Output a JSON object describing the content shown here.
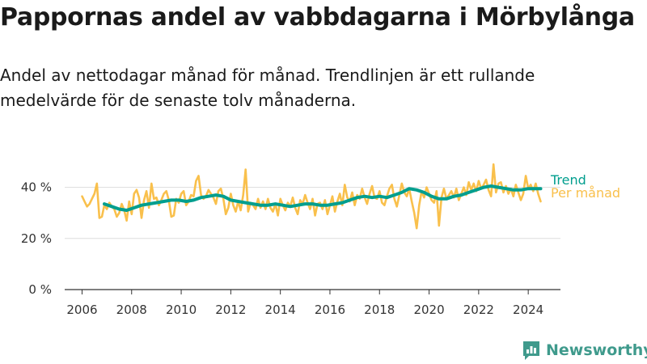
{
  "title": "Pappornas andel av vabbdagarna i Mörbylånga",
  "subtitle": "Andel av nettodagar månad för månad. Trendlinjen är ett rullande medelvärde för de senaste tolv månaderna.",
  "brand": "Newsworthy",
  "colors": {
    "trend": "#009e8e",
    "monthly": "#f9c04c",
    "grid": "#dddddd",
    "brand": "#3f9a8c"
  },
  "chart_data": {
    "type": "line",
    "x_ticks": [
      "2006",
      "2008",
      "2010",
      "2012",
      "2014",
      "2016",
      "2018",
      "2020",
      "2022",
      "2024"
    ],
    "y_ticks": [
      "0 %",
      "20 %",
      "40 %"
    ],
    "ylim": [
      0,
      50
    ],
    "xlim": [
      2005.3,
      2025.3
    ],
    "grid": true,
    "legend": "right-end labels",
    "series": [
      {
        "name": "Per månad",
        "color": "#f9c04c",
        "points": [
          [
            2006.0,
            36.5
          ],
          [
            2006.1,
            34.5
          ],
          [
            2006.2,
            32.5
          ],
          [
            2006.3,
            33.5
          ],
          [
            2006.4,
            35.5
          ],
          [
            2006.5,
            37.5
          ],
          [
            2006.6,
            41.5
          ],
          [
            2006.7,
            28.0
          ],
          [
            2006.8,
            28.5
          ],
          [
            2006.9,
            33.0
          ],
          [
            2007.0,
            31.5
          ],
          [
            2007.1,
            34.0
          ],
          [
            2007.2,
            32.5
          ],
          [
            2007.3,
            31.5
          ],
          [
            2007.4,
            28.5
          ],
          [
            2007.5,
            30.0
          ],
          [
            2007.6,
            33.5
          ],
          [
            2007.7,
            31.0
          ],
          [
            2007.8,
            27.0
          ],
          [
            2007.9,
            34.5
          ],
          [
            2008.0,
            29.5
          ],
          [
            2008.1,
            37.5
          ],
          [
            2008.2,
            39.0
          ],
          [
            2008.3,
            36.0
          ],
          [
            2008.4,
            28.0
          ],
          [
            2008.5,
            35.0
          ],
          [
            2008.6,
            38.5
          ],
          [
            2008.7,
            32.0
          ],
          [
            2008.8,
            41.5
          ],
          [
            2008.9,
            35.5
          ],
          [
            2009.0,
            36.0
          ],
          [
            2009.1,
            33.0
          ],
          [
            2009.2,
            35.0
          ],
          [
            2009.3,
            37.5
          ],
          [
            2009.4,
            38.5
          ],
          [
            2009.5,
            35.0
          ],
          [
            2009.6,
            28.5
          ],
          [
            2009.7,
            29.0
          ],
          [
            2009.8,
            35.5
          ],
          [
            2009.9,
            34.0
          ],
          [
            2010.0,
            37.5
          ],
          [
            2010.1,
            38.5
          ],
          [
            2010.2,
            33.0
          ],
          [
            2010.3,
            34.5
          ],
          [
            2010.4,
            37.0
          ],
          [
            2010.5,
            36.5
          ],
          [
            2010.6,
            42.5
          ],
          [
            2010.7,
            44.5
          ],
          [
            2010.8,
            37.0
          ],
          [
            2010.9,
            35.5
          ],
          [
            2011.0,
            36.5
          ],
          [
            2011.1,
            39.0
          ],
          [
            2011.2,
            37.5
          ],
          [
            2011.3,
            36.0
          ],
          [
            2011.4,
            33.5
          ],
          [
            2011.5,
            38.5
          ],
          [
            2011.6,
            39.5
          ],
          [
            2011.7,
            35.5
          ],
          [
            2011.8,
            29.5
          ],
          [
            2011.9,
            32.0
          ],
          [
            2012.0,
            37.5
          ],
          [
            2012.1,
            33.0
          ],
          [
            2012.2,
            30.5
          ],
          [
            2012.3,
            34.5
          ],
          [
            2012.4,
            31.0
          ],
          [
            2012.5,
            37.0
          ],
          [
            2012.6,
            47.0
          ],
          [
            2012.7,
            30.5
          ],
          [
            2012.8,
            34.0
          ],
          [
            2012.9,
            33.0
          ],
          [
            2013.0,
            31.5
          ],
          [
            2013.1,
            35.5
          ],
          [
            2013.2,
            32.0
          ],
          [
            2013.3,
            34.5
          ],
          [
            2013.4,
            31.5
          ],
          [
            2013.5,
            35.5
          ],
          [
            2013.6,
            32.0
          ],
          [
            2013.7,
            30.5
          ],
          [
            2013.8,
            33.5
          ],
          [
            2013.9,
            29.0
          ],
          [
            2014.0,
            35.5
          ],
          [
            2014.1,
            33.0
          ],
          [
            2014.2,
            31.0
          ],
          [
            2014.3,
            34.0
          ],
          [
            2014.4,
            32.5
          ],
          [
            2014.5,
            36.0
          ],
          [
            2014.6,
            32.0
          ],
          [
            2014.7,
            29.5
          ],
          [
            2014.8,
            35.0
          ],
          [
            2014.9,
            33.5
          ],
          [
            2015.0,
            37.0
          ],
          [
            2015.1,
            34.0
          ],
          [
            2015.2,
            31.5
          ],
          [
            2015.3,
            35.5
          ],
          [
            2015.4,
            29.0
          ],
          [
            2015.5,
            33.5
          ],
          [
            2015.6,
            34.0
          ],
          [
            2015.7,
            31.5
          ],
          [
            2015.8,
            35.0
          ],
          [
            2015.9,
            29.5
          ],
          [
            2016.0,
            33.0
          ],
          [
            2016.1,
            36.5
          ],
          [
            2016.2,
            30.5
          ],
          [
            2016.3,
            34.5
          ],
          [
            2016.4,
            37.5
          ],
          [
            2016.5,
            33.0
          ],
          [
            2016.6,
            41.0
          ],
          [
            2016.7,
            36.0
          ],
          [
            2016.8,
            34.5
          ],
          [
            2016.9,
            38.0
          ],
          [
            2017.0,
            33.0
          ],
          [
            2017.1,
            37.0
          ],
          [
            2017.2,
            35.5
          ],
          [
            2017.3,
            39.5
          ],
          [
            2017.4,
            36.0
          ],
          [
            2017.5,
            33.5
          ],
          [
            2017.6,
            37.5
          ],
          [
            2017.7,
            40.5
          ],
          [
            2017.8,
            36.0
          ],
          [
            2017.9,
            35.5
          ],
          [
            2018.0,
            38.5
          ],
          [
            2018.1,
            34.0
          ],
          [
            2018.2,
            33.0
          ],
          [
            2018.3,
            36.5
          ],
          [
            2018.4,
            39.5
          ],
          [
            2018.5,
            41.0
          ],
          [
            2018.6,
            35.5
          ],
          [
            2018.7,
            32.5
          ],
          [
            2018.8,
            37.0
          ],
          [
            2018.9,
            41.5
          ],
          [
            2019.0,
            38.0
          ],
          [
            2019.1,
            36.5
          ],
          [
            2019.2,
            39.5
          ],
          [
            2019.3,
            34.5
          ],
          [
            2019.4,
            30.0
          ],
          [
            2019.5,
            24.0
          ],
          [
            2019.6,
            33.0
          ],
          [
            2019.7,
            38.5
          ],
          [
            2019.8,
            36.0
          ],
          [
            2019.9,
            40.0
          ],
          [
            2020.0,
            37.5
          ],
          [
            2020.1,
            35.0
          ],
          [
            2020.2,
            34.0
          ],
          [
            2020.3,
            38.5
          ],
          [
            2020.4,
            25.0
          ],
          [
            2020.5,
            36.0
          ],
          [
            2020.6,
            39.5
          ],
          [
            2020.7,
            35.5
          ],
          [
            2020.8,
            37.0
          ],
          [
            2020.9,
            38.5
          ],
          [
            2021.0,
            36.0
          ],
          [
            2021.1,
            39.5
          ],
          [
            2021.2,
            35.0
          ],
          [
            2021.3,
            37.5
          ],
          [
            2021.4,
            40.0
          ],
          [
            2021.5,
            37.0
          ],
          [
            2021.6,
            42.0
          ],
          [
            2021.7,
            39.0
          ],
          [
            2021.8,
            41.5
          ],
          [
            2021.9,
            38.5
          ],
          [
            2022.0,
            42.5
          ],
          [
            2022.1,
            39.5
          ],
          [
            2022.2,
            41.0
          ],
          [
            2022.3,
            43.0
          ],
          [
            2022.4,
            39.0
          ],
          [
            2022.5,
            36.5
          ],
          [
            2022.6,
            49.0
          ],
          [
            2022.7,
            38.0
          ],
          [
            2022.8,
            41.5
          ],
          [
            2022.9,
            42.0
          ],
          [
            2023.0,
            38.0
          ],
          [
            2023.1,
            40.5
          ],
          [
            2023.2,
            37.5
          ],
          [
            2023.3,
            39.5
          ],
          [
            2023.4,
            36.5
          ],
          [
            2023.5,
            41.0
          ],
          [
            2023.6,
            38.0
          ],
          [
            2023.7,
            35.0
          ],
          [
            2023.8,
            37.5
          ],
          [
            2023.9,
            44.5
          ],
          [
            2024.0,
            39.5
          ],
          [
            2024.1,
            41.0
          ],
          [
            2024.2,
            38.5
          ],
          [
            2024.3,
            41.5
          ],
          [
            2024.4,
            37.5
          ],
          [
            2024.5,
            34.5
          ]
        ]
      },
      {
        "name": "Trend",
        "color": "#009e8e",
        "points": [
          [
            2006.9,
            33.5
          ],
          [
            2007.2,
            32.5
          ],
          [
            2007.5,
            31.5
          ],
          [
            2007.8,
            31.0
          ],
          [
            2008.1,
            32.0
          ],
          [
            2008.4,
            33.0
          ],
          [
            2008.7,
            33.5
          ],
          [
            2009.0,
            34.0
          ],
          [
            2009.3,
            34.5
          ],
          [
            2009.6,
            35.0
          ],
          [
            2009.9,
            35.0
          ],
          [
            2010.2,
            34.5
          ],
          [
            2010.5,
            35.0
          ],
          [
            2010.8,
            36.0
          ],
          [
            2011.1,
            36.5
          ],
          [
            2011.4,
            37.0
          ],
          [
            2011.7,
            36.5
          ],
          [
            2012.0,
            35.0
          ],
          [
            2012.3,
            34.5
          ],
          [
            2012.6,
            34.0
          ],
          [
            2012.9,
            33.5
          ],
          [
            2013.2,
            33.0
          ],
          [
            2013.5,
            33.0
          ],
          [
            2013.8,
            33.5
          ],
          [
            2014.1,
            33.0
          ],
          [
            2014.4,
            32.5
          ],
          [
            2014.7,
            33.0
          ],
          [
            2015.0,
            33.5
          ],
          [
            2015.3,
            33.5
          ],
          [
            2015.6,
            33.0
          ],
          [
            2015.9,
            33.0
          ],
          [
            2016.2,
            33.5
          ],
          [
            2016.5,
            34.0
          ],
          [
            2016.8,
            35.0
          ],
          [
            2017.1,
            36.0
          ],
          [
            2017.4,
            36.5
          ],
          [
            2017.7,
            36.0
          ],
          [
            2018.0,
            36.5
          ],
          [
            2018.3,
            36.0
          ],
          [
            2018.6,
            37.0
          ],
          [
            2018.9,
            38.0
          ],
          [
            2019.2,
            39.5
          ],
          [
            2019.5,
            39.0
          ],
          [
            2019.8,
            38.0
          ],
          [
            2020.1,
            36.5
          ],
          [
            2020.4,
            35.5
          ],
          [
            2020.7,
            35.5
          ],
          [
            2021.0,
            36.5
          ],
          [
            2021.3,
            37.0
          ],
          [
            2021.6,
            38.0
          ],
          [
            2021.9,
            39.0
          ],
          [
            2022.2,
            40.0
          ],
          [
            2022.5,
            40.5
          ],
          [
            2022.8,
            40.0
          ],
          [
            2023.1,
            39.5
          ],
          [
            2023.4,
            39.0
          ],
          [
            2023.7,
            39.0
          ],
          [
            2024.0,
            39.5
          ],
          [
            2024.3,
            39.5
          ],
          [
            2024.5,
            39.5
          ]
        ]
      }
    ]
  }
}
